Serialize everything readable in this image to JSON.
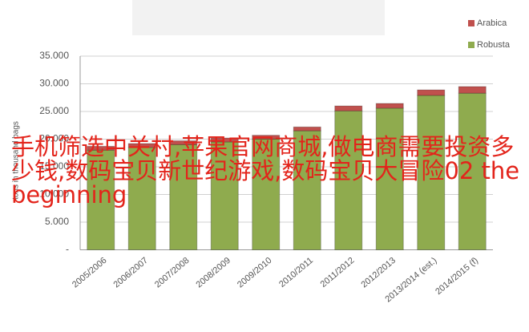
{
  "chart_data": {
    "type": "stacked-bar",
    "y_label": "tons in thousand bags",
    "categories": [
      "2005/2006",
      "2006/2007",
      "2007/2008",
      "2008/2009",
      "2009/2010",
      "2010/2011",
      "2011/2012",
      "2012/2013",
      "2013/2014 (est.)",
      "2014/2015 (f)"
    ],
    "series": [
      {
        "name": "Arabica",
        "color": "#c0504d",
        "values": [
          700,
          700,
          700,
          700,
          700,
          700,
          900,
          850,
          1000,
          1200
        ]
      },
      {
        "name": "Robusta",
        "color": "#8fab4e",
        "values": [
          18000,
          18500,
          19000,
          19500,
          20000,
          21500,
          25100,
          25600,
          27900,
          28300
        ]
      }
    ],
    "ylim": [
      0,
      35000
    ],
    "yticks": [
      {
        "value": 0,
        "label": "-"
      },
      {
        "value": 5000,
        "label": "5.000"
      },
      {
        "value": 10000,
        "label": "10.000"
      },
      {
        "value": 15000,
        "label": "15.000"
      },
      {
        "value": 20000,
        "label": "20.000"
      },
      {
        "value": 25000,
        "label": "25.000"
      },
      {
        "value": 30000,
        "label": "30.000"
      },
      {
        "value": 35000,
        "label": "35.000"
      }
    ],
    "grid": true,
    "legend": "top-right"
  },
  "overlay_text": "手机筛选中关村,苹果官网商城,做电商需要投资多少钱,数码宝贝新世纪游戏,数码宝贝大冒险02 the beginning"
}
